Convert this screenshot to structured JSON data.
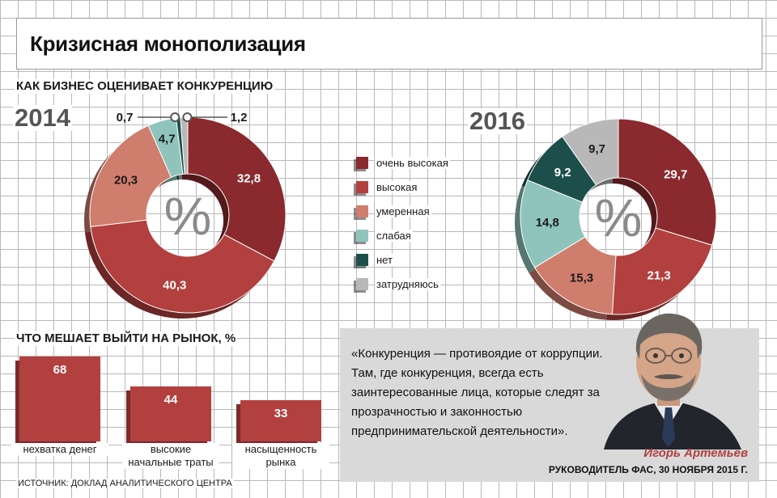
{
  "title": "Кризисная монополизация",
  "section1_title": "КАК БИЗНЕС ОЦЕНИВАЕТ КОНКУРЕНЦИЮ",
  "percent_sign": "%",
  "legend": [
    {
      "label": "очень высокая",
      "color": "#8a2a2e"
    },
    {
      "label": "высокая",
      "color": "#b2403f"
    },
    {
      "label": "умеренная",
      "color": "#cf7d6c"
    },
    {
      "label": "слабая",
      "color": "#8fc4bd"
    },
    {
      "label": "нет",
      "color": "#1c4e4c"
    },
    {
      "label": "затрудняюсь",
      "color": "#b8b8b8"
    }
  ],
  "section2_title": "ЧТО МЕШАЕТ ВЫЙТИ НА РЫНОК, %",
  "source": "ИСТОЧНИК: ДОКЛАД АНАЛИТИЧЕСКОГО ЦЕНТРА",
  "quote": {
    "text": "«Конкуренция — противоядие от коррупции. Там, где конкуренция, всегда есть заинтересованные лица, которые следят за прозрачностью и законностью предпринимательской деятельности».",
    "author": "Игорь Артемьев",
    "role": "РУКОВОДИТЕЛЬ ФАС, 30 НОЯБРЯ 2015 Г."
  },
  "chart_data": [
    {
      "type": "pie",
      "year": "2014",
      "categories": [
        "очень высокая",
        "высокая",
        "умеренная",
        "слабая",
        "нет",
        "затрудняюсь"
      ],
      "values": [
        32.8,
        40.3,
        20.3,
        4.7,
        0.7,
        1.2
      ],
      "labels": [
        "32,8",
        "40,3",
        "20,3",
        "4,7",
        "0,7",
        "1,2"
      ],
      "colors": [
        "#8a2a2e",
        "#b2403f",
        "#cf7d6c",
        "#8fc4bd",
        "#1c4e4c",
        "#b8b8b8"
      ]
    },
    {
      "type": "pie",
      "year": "2016",
      "categories": [
        "очень высокая",
        "высокая",
        "умеренная",
        "слабая",
        "нет",
        "затрудняюсь"
      ],
      "values": [
        29.7,
        21.3,
        15.3,
        14.8,
        9.2,
        9.7
      ],
      "labels": [
        "29,7",
        "21,3",
        "15,3",
        "14,8",
        "9,2",
        "9,7"
      ],
      "colors": [
        "#8a2a2e",
        "#b2403f",
        "#cf7d6c",
        "#8fc4bd",
        "#1c4e4c",
        "#b8b8b8"
      ]
    },
    {
      "type": "bar",
      "categories": [
        "нехватка денег",
        "высокие начальные траты",
        "насыщенность рынка"
      ],
      "category_lines": [
        [
          "нехватка денег"
        ],
        [
          "высокие",
          "начальные траты"
        ],
        [
          "насыщенность",
          "рынка"
        ]
      ],
      "values": [
        68,
        44,
        33
      ],
      "ylim": [
        0,
        68
      ]
    }
  ]
}
